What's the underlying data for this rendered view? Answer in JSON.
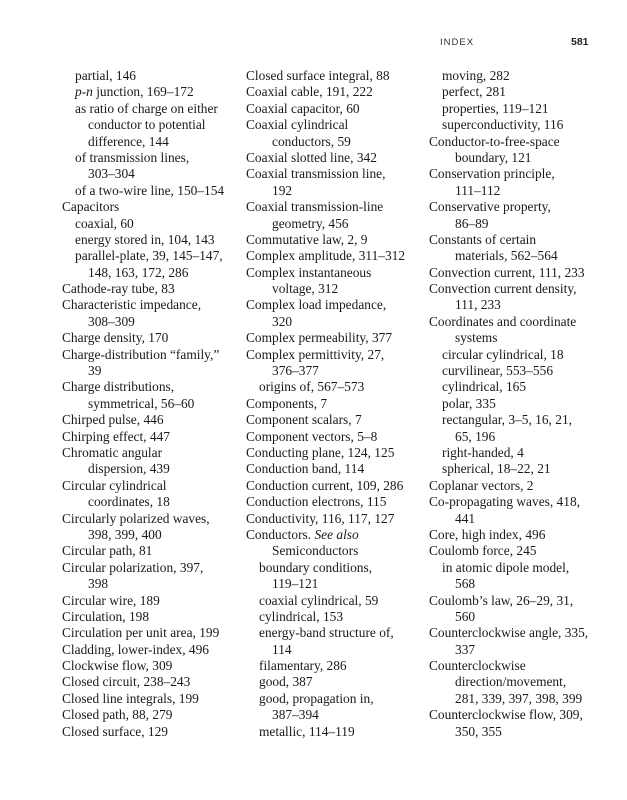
{
  "header": {
    "section": "INDEX",
    "page_number": "581"
  },
  "columns": [
    [
      {
        "l": "sub",
        "t": "partial, 146"
      },
      {
        "l": "sub",
        "em": "p-n",
        "t": " junction, 169–172"
      },
      {
        "l": "sub",
        "t": "as ratio of charge on either"
      },
      {
        "l": "cont",
        "t": "conductor to potential"
      },
      {
        "l": "cont",
        "t": "difference, 144"
      },
      {
        "l": "sub",
        "t": "of transmission lines,"
      },
      {
        "l": "cont",
        "t": "303–304"
      },
      {
        "l": "sub",
        "t": "of a two-wire line, 150–154"
      },
      {
        "l": "main",
        "t": "Capacitors"
      },
      {
        "l": "sub",
        "t": "coaxial, 60"
      },
      {
        "l": "sub",
        "t": "energy stored in, 104, 143"
      },
      {
        "l": "sub",
        "t": "parallel-plate, 39, 145–147,"
      },
      {
        "l": "cont",
        "t": "148, 163, 172, 286"
      },
      {
        "l": "main",
        "t": "Cathode-ray tube, 83"
      },
      {
        "l": "main",
        "t": "Characteristic impedance,"
      },
      {
        "l": "cont",
        "t": "308–309"
      },
      {
        "l": "main",
        "t": "Charge density, 170"
      },
      {
        "l": "main",
        "t": "Charge-distribution “family,”"
      },
      {
        "l": "cont",
        "t": "39"
      },
      {
        "l": "main",
        "t": "Charge distributions,"
      },
      {
        "l": "cont",
        "t": "symmetrical, 56–60"
      },
      {
        "l": "main",
        "t": "Chirped pulse, 446"
      },
      {
        "l": "main",
        "t": "Chirping effect, 447"
      },
      {
        "l": "main",
        "t": "Chromatic angular"
      },
      {
        "l": "cont",
        "t": "dispersion, 439"
      },
      {
        "l": "main",
        "t": "Circular cylindrical"
      },
      {
        "l": "cont",
        "t": "coordinates, 18"
      },
      {
        "l": "main",
        "t": "Circularly polarized waves,"
      },
      {
        "l": "cont",
        "t": "398, 399, 400"
      },
      {
        "l": "main",
        "t": "Circular path, 81"
      },
      {
        "l": "main",
        "t": "Circular polarization, 397,"
      },
      {
        "l": "cont",
        "t": "398"
      },
      {
        "l": "main",
        "t": "Circular wire, 189"
      },
      {
        "l": "main",
        "t": "Circulation, 198"
      },
      {
        "l": "main",
        "t": "Circulation per unit area, 199"
      },
      {
        "l": "main",
        "t": "Cladding, lower-index, 496"
      },
      {
        "l": "main",
        "t": "Clockwise flow, 309"
      },
      {
        "l": "main",
        "t": "Closed circuit, 238–243"
      },
      {
        "l": "main",
        "t": "Closed line integrals, 199"
      },
      {
        "l": "main",
        "t": "Closed path, 88, 279"
      },
      {
        "l": "main",
        "t": "Closed surface, 129"
      }
    ],
    [
      {
        "l": "main",
        "t": "Closed surface integral, 88"
      },
      {
        "l": "main",
        "t": "Coaxial cable, 191, 222"
      },
      {
        "l": "main",
        "t": "Coaxial capacitor, 60"
      },
      {
        "l": "main",
        "t": "Coaxial cylindrical"
      },
      {
        "l": "cont",
        "t": "conductors, 59"
      },
      {
        "l": "main",
        "t": "Coaxial slotted line, 342"
      },
      {
        "l": "main",
        "t": "Coaxial transmission line,"
      },
      {
        "l": "cont",
        "t": "192"
      },
      {
        "l": "main",
        "t": "Coaxial transmission-line"
      },
      {
        "l": "cont",
        "t": "geometry, 456"
      },
      {
        "l": "main",
        "t": "Commutative law, 2, 9"
      },
      {
        "l": "main",
        "t": "Complex amplitude, 311–312"
      },
      {
        "l": "main",
        "t": "Complex instantaneous"
      },
      {
        "l": "cont",
        "t": "voltage, 312"
      },
      {
        "l": "main",
        "t": "Complex load impedance,"
      },
      {
        "l": "cont",
        "t": "320"
      },
      {
        "l": "main",
        "t": "Complex permeability, 377"
      },
      {
        "l": "main",
        "t": "Complex permittivity, 27,"
      },
      {
        "l": "cont",
        "t": "376–377"
      },
      {
        "l": "sub",
        "t": "origins of, 567–573"
      },
      {
        "l": "main",
        "t": "Components, 7"
      },
      {
        "l": "main",
        "t": "Component scalars, 7"
      },
      {
        "l": "main",
        "t": "Component vectors, 5–8"
      },
      {
        "l": "main",
        "t": "Conducting plane, 124, 125"
      },
      {
        "l": "main",
        "t": "Conduction band, 114"
      },
      {
        "l": "main",
        "t": "Conduction current, 109, 286"
      },
      {
        "l": "main",
        "t": "Conduction electrons, 115"
      },
      {
        "l": "main",
        "t": "Conductivity, 116, 117, 127"
      },
      {
        "l": "main",
        "t": "Conductors. ",
        "em": "See also"
      },
      {
        "l": "cont",
        "t": "Semiconductors"
      },
      {
        "l": "sub",
        "t": "boundary conditions,"
      },
      {
        "l": "cont",
        "t": "119–121"
      },
      {
        "l": "sub",
        "t": "coaxial cylindrical, 59"
      },
      {
        "l": "sub",
        "t": "cylindrical, 153"
      },
      {
        "l": "sub",
        "t": "energy-band structure of,"
      },
      {
        "l": "cont",
        "t": "114"
      },
      {
        "l": "sub",
        "t": "filamentary, 286"
      },
      {
        "l": "sub",
        "t": "good, 387"
      },
      {
        "l": "sub",
        "t": "good, propagation in,"
      },
      {
        "l": "cont",
        "t": "387–394"
      },
      {
        "l": "sub",
        "t": "metallic, 114–119"
      }
    ],
    [
      {
        "l": "sub",
        "t": "moving, 282"
      },
      {
        "l": "sub",
        "t": "perfect, 281"
      },
      {
        "l": "sub",
        "t": "properties, 119–121"
      },
      {
        "l": "sub",
        "t": "superconductivity, 116"
      },
      {
        "l": "main",
        "t": "Conductor-to-free-space"
      },
      {
        "l": "cont",
        "t": "boundary, 121"
      },
      {
        "l": "main",
        "t": "Conservation principle,"
      },
      {
        "l": "cont",
        "t": "111–112"
      },
      {
        "l": "main",
        "t": "Conservative property,"
      },
      {
        "l": "cont",
        "t": "86–89"
      },
      {
        "l": "main",
        "t": "Constants of certain"
      },
      {
        "l": "cont",
        "t": "materials, 562–564"
      },
      {
        "l": "main",
        "t": "Convection current, 111, 233"
      },
      {
        "l": "main",
        "t": "Convection current density,"
      },
      {
        "l": "cont",
        "t": "111, 233"
      },
      {
        "l": "main",
        "t": "Coordinates and coordinate"
      },
      {
        "l": "cont",
        "t": "systems"
      },
      {
        "l": "sub",
        "t": "circular cylindrical, 18"
      },
      {
        "l": "sub",
        "t": "curvilinear, 553–556"
      },
      {
        "l": "sub",
        "t": "cylindrical, 165"
      },
      {
        "l": "sub",
        "t": "polar, 335"
      },
      {
        "l": "sub",
        "t": "rectangular, 3–5, 16, 21,"
      },
      {
        "l": "cont",
        "t": "65, 196"
      },
      {
        "l": "sub",
        "t": "right-handed, 4"
      },
      {
        "l": "sub",
        "t": "spherical, 18–22, 21"
      },
      {
        "l": "main",
        "t": "Coplanar vectors, 2"
      },
      {
        "l": "main",
        "t": "Co-propagating waves, 418,"
      },
      {
        "l": "cont",
        "t": "441"
      },
      {
        "l": "main",
        "t": "Core, high index, 496"
      },
      {
        "l": "main",
        "t": "Coulomb force, 245"
      },
      {
        "l": "sub",
        "t": "in atomic dipole model,"
      },
      {
        "l": "cont",
        "t": "568"
      },
      {
        "l": "main",
        "t": "Coulomb’s law, 26–29, 31,"
      },
      {
        "l": "cont",
        "t": "560"
      },
      {
        "l": "main",
        "t": "Counterclockwise angle, 335,"
      },
      {
        "l": "cont",
        "t": "337"
      },
      {
        "l": "main",
        "t": "Counterclockwise"
      },
      {
        "l": "cont",
        "t": "direction/movement,"
      },
      {
        "l": "cont",
        "t": "281, 339, 397, 398, 399"
      },
      {
        "l": "main",
        "t": "Counterclockwise flow, 309,"
      },
      {
        "l": "cont",
        "t": "350, 355"
      }
    ]
  ]
}
